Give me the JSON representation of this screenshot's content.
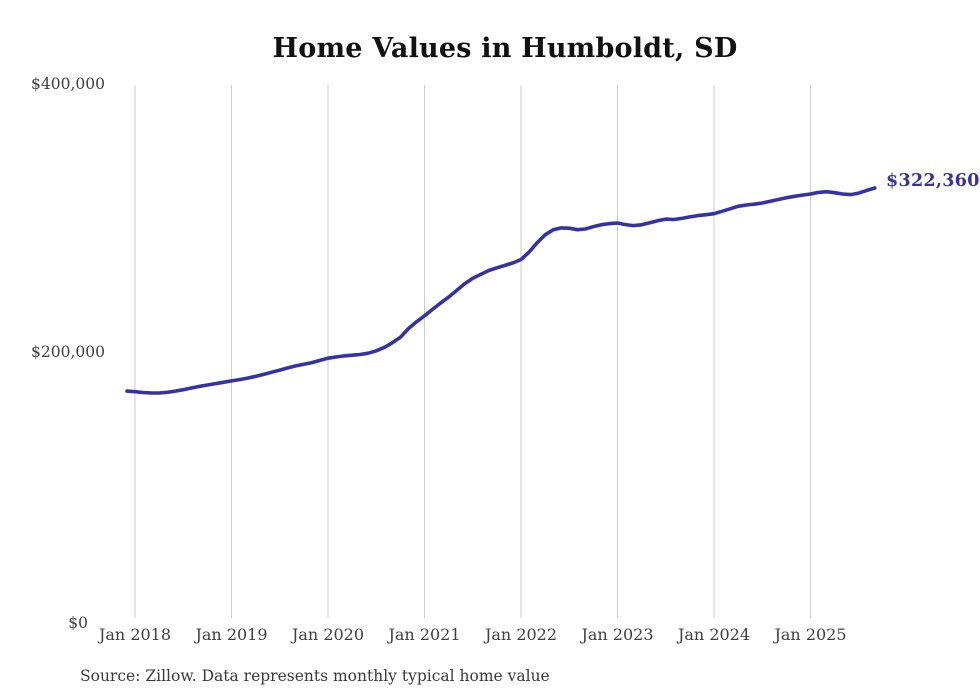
{
  "title": "Home Values in Humboldt, SD",
  "end_label": "$322,360",
  "source_note": "Source: Zillow. Data represents monthly typical home value",
  "colors": {
    "line": "#3533a3",
    "end_label": "#3533a3",
    "grid": "#cccccc",
    "axis_text": "#3f3f3f",
    "title_text": "#111111"
  },
  "chart_data": {
    "type": "line",
    "title": "Home Values in Humboldt, SD",
    "xlabel": "",
    "ylabel": "",
    "ylim": [
      0,
      400000
    ],
    "grid": "vertical-only",
    "legend_position": "none",
    "annotation": "$322,360",
    "ytick_labels": [
      "$400,000",
      "$200,000",
      "$0"
    ],
    "ytick_values": [
      400000,
      200000,
      0
    ],
    "xtick_labels": [
      "Jan 2018",
      "Jan 2019",
      "Jan 2020",
      "Jan 2021",
      "Jan 2022",
      "Jan 2023",
      "Jan 2024",
      "Jan 2025"
    ],
    "x": [
      "2017-12",
      "2018-01",
      "2018-02",
      "2018-03",
      "2018-04",
      "2018-05",
      "2018-06",
      "2018-07",
      "2018-08",
      "2018-09",
      "2018-10",
      "2018-11",
      "2018-12",
      "2019-01",
      "2019-02",
      "2019-03",
      "2019-04",
      "2019-05",
      "2019-06",
      "2019-07",
      "2019-08",
      "2019-09",
      "2019-10",
      "2019-11",
      "2019-12",
      "2020-01",
      "2020-02",
      "2020-03",
      "2020-04",
      "2020-05",
      "2020-06",
      "2020-07",
      "2020-08",
      "2020-09",
      "2020-10",
      "2020-11",
      "2020-12",
      "2021-01",
      "2021-02",
      "2021-03",
      "2021-04",
      "2021-05",
      "2021-06",
      "2021-07",
      "2021-08",
      "2021-09",
      "2021-10",
      "2021-11",
      "2021-12",
      "2022-01",
      "2022-02",
      "2022-03",
      "2022-04",
      "2022-05",
      "2022-06",
      "2022-07",
      "2022-08",
      "2022-09",
      "2022-10",
      "2022-11",
      "2022-12",
      "2023-01",
      "2023-02",
      "2023-03",
      "2023-04",
      "2023-05",
      "2023-06",
      "2023-07",
      "2023-08",
      "2023-09",
      "2023-10",
      "2023-11",
      "2023-12",
      "2024-01",
      "2024-02",
      "2024-03",
      "2024-04",
      "2024-05",
      "2024-06",
      "2024-07",
      "2024-08",
      "2024-09",
      "2024-10",
      "2024-11",
      "2024-12",
      "2025-01",
      "2025-02",
      "2025-03",
      "2025-04",
      "2025-05",
      "2025-06",
      "2025-07",
      "2025-08",
      "2025-09"
    ],
    "values": [
      170800,
      170400,
      169800,
      169400,
      169400,
      169900,
      170800,
      171900,
      173100,
      174300,
      175400,
      176400,
      177400,
      178400,
      179400,
      180500,
      181800,
      183300,
      184900,
      186500,
      188100,
      189600,
      190900,
      192100,
      193700,
      195400,
      196300,
      197100,
      197600,
      198100,
      199100,
      200900,
      203400,
      206900,
      211000,
      217500,
      222500,
      227000,
      231800,
      236600,
      241000,
      246000,
      251000,
      255000,
      258000,
      260800,
      262800,
      264600,
      266500,
      269000,
      274500,
      281500,
      287500,
      291200,
      292600,
      292400,
      291300,
      291800,
      293600,
      295000,
      295800,
      296300,
      295100,
      294300,
      294900,
      296400,
      298000,
      299200,
      298900,
      299700,
      300800,
      301800,
      302500,
      303200,
      305000,
      306900,
      308700,
      309700,
      310300,
      311200,
      312500,
      313800,
      315100,
      316200,
      317100,
      317900,
      319100,
      319600,
      318900,
      317900,
      317500,
      318600,
      320600,
      322360
    ]
  }
}
